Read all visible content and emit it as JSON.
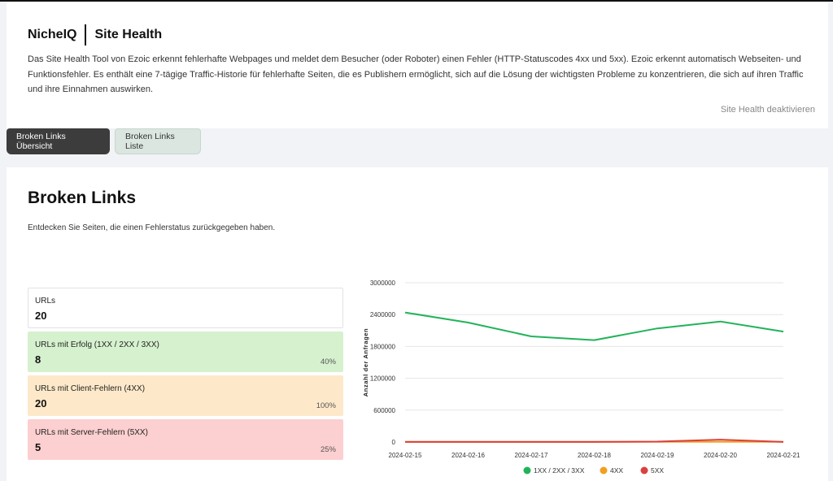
{
  "header": {
    "brand": "NicheIQ",
    "title": "Site Health",
    "description": "Das Site Health Tool von Ezoic erkennt fehlerhafte Webpages und meldet dem Besucher (oder Roboter) einen Fehler (HTTP-Statuscodes 4xx und 5xx). Ezoic erkennt automatisch Webseiten- und Funktionsfehler. Es enthält eine 7-tägige Traffic-Historie für fehlerhafte Seiten, die es Publishern ermöglicht, sich auf die Lösung der wichtigsten Probleme zu konzentrieren, die sich auf ihren Traffic und ihre Einnahmen auswirken.",
    "deactivate_label": "Site Health deaktivieren"
  },
  "tabs": [
    {
      "label": "Broken Links Übersicht",
      "active": true
    },
    {
      "label": "Broken Links Liste",
      "active": false
    }
  ],
  "main": {
    "title": "Broken Links",
    "subtitle": "Entdecken Sie Seiten, die einen Fehlerstatus zurückgegeben haben."
  },
  "stats": [
    {
      "label": "URLs",
      "value": "20",
      "percent": ""
    },
    {
      "label": "URLs mit Erfolg (1XX / 2XX / 3XX)",
      "value": "8",
      "percent": "40%"
    },
    {
      "label": "URLs mit Client-Fehlern (4XX)",
      "value": "20",
      "percent": "100%"
    },
    {
      "label": "URLs mit Server-Fehlern (5XX)",
      "value": "5",
      "percent": "25%"
    }
  ],
  "colors": {
    "green": "#22b35a",
    "amber": "#f0a020",
    "red": "#d9413e"
  },
  "chart_data": {
    "type": "line",
    "ylabel": "Anzahl der Anfragen",
    "x": [
      "2024-02-15",
      "2024-02-16",
      "2024-02-17",
      "2024-02-18",
      "2024-02-19",
      "2024-02-20",
      "2024-02-21"
    ],
    "ylim": [
      0,
      3000000
    ],
    "yticks": [
      "0",
      "600000",
      "1200000",
      "1800000",
      "2400000",
      "3000000"
    ],
    "series": [
      {
        "name": "1XX / 2XX / 3XX",
        "color": "#22b35a",
        "values": [
          2440000,
          2250000,
          1990000,
          1920000,
          2140000,
          2270000,
          2080000
        ]
      },
      {
        "name": "4XX",
        "color": "#f0a020",
        "values": [
          3000,
          3000,
          3000,
          3000,
          3000,
          4000,
          3000
        ]
      },
      {
        "name": "5XX",
        "color": "#d9413e",
        "values": [
          2000,
          2000,
          2000,
          2000,
          8000,
          45000,
          2000
        ]
      }
    ],
    "grid": true,
    "legend": "bottom"
  }
}
